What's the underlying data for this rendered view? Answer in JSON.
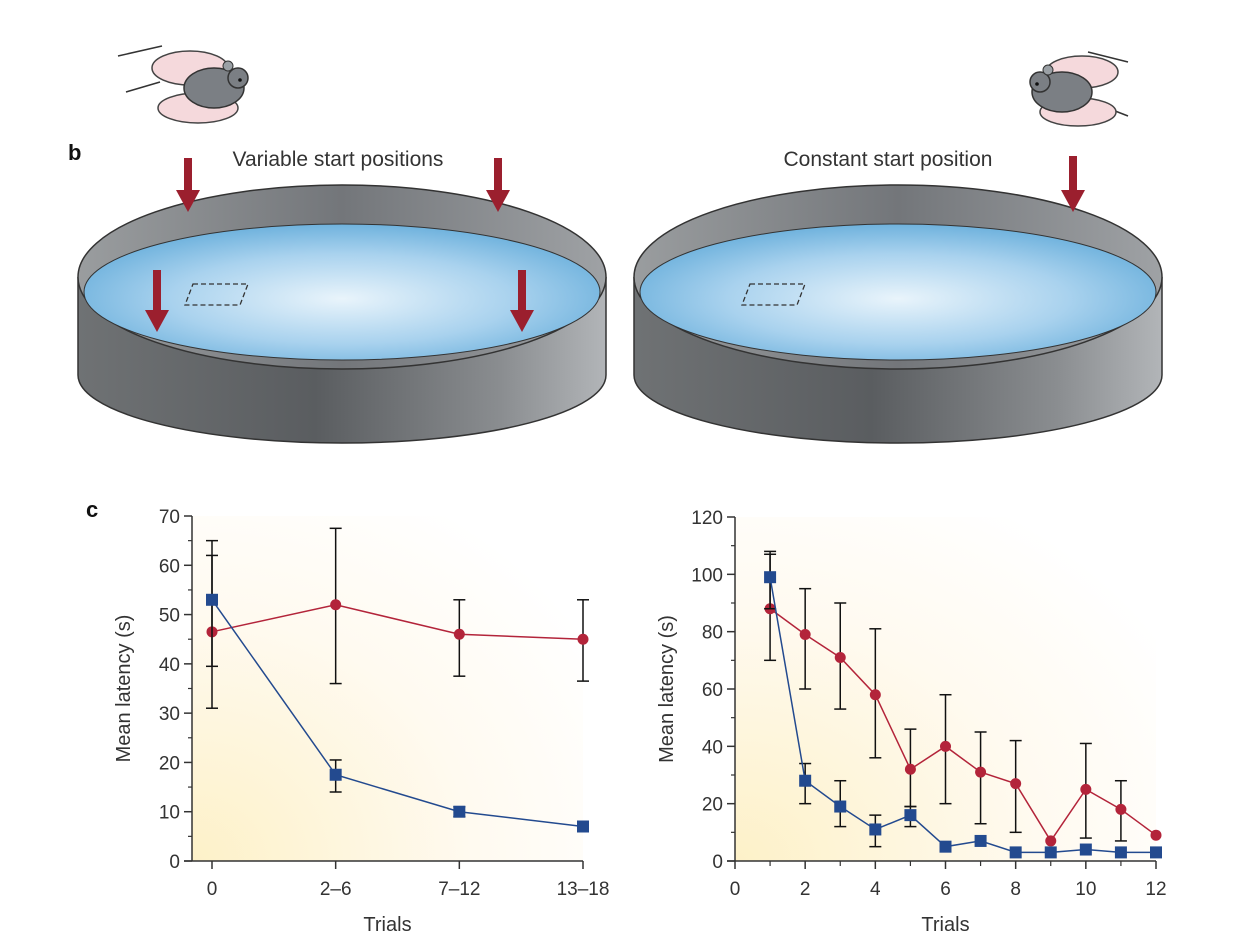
{
  "panel_b": {
    "letter": "b",
    "left_title": "Variable start positions",
    "right_title": "Constant start position"
  },
  "panel_c": {
    "letter": "c"
  },
  "colors": {
    "red_series": "#b3243a",
    "blue_series": "#234a8f",
    "arrow": "#9b1f2e",
    "water": "#6fb2dd"
  },
  "chart_data": [
    {
      "type": "line",
      "xlabel": "Trials",
      "ylabel": "Mean latency (s)",
      "categories": [
        "0",
        "2–6",
        "7–12",
        "13–18"
      ],
      "ylim": [
        0,
        70
      ],
      "yticks": [
        0,
        10,
        20,
        30,
        40,
        50,
        60,
        70
      ],
      "series": [
        {
          "color": "red",
          "marker": "circle",
          "values": [
            46.5,
            52,
            46,
            45
          ],
          "err_low": [
            31,
            36,
            37.5,
            36.5
          ],
          "err_high": [
            62,
            67.5,
            53,
            53
          ]
        },
        {
          "color": "blue",
          "marker": "square",
          "values": [
            53,
            17.5,
            10,
            7
          ],
          "err_low": [
            39.5,
            14,
            9,
            6
          ],
          "err_high": [
            65,
            20.5,
            11,
            8
          ]
        }
      ]
    },
    {
      "type": "line",
      "xlabel": "Trials",
      "ylabel": "Mean latency (s)",
      "x": [
        1,
        2,
        3,
        4,
        5,
        6,
        7,
        8,
        9,
        10,
        11,
        12
      ],
      "xlim": [
        0,
        12
      ],
      "xticks": [
        0,
        2,
        4,
        6,
        8,
        10,
        12
      ],
      "ylim": [
        0,
        120
      ],
      "yticks": [
        0,
        20,
        40,
        60,
        80,
        100,
        120
      ],
      "series": [
        {
          "color": "red",
          "marker": "circle",
          "values": [
            88,
            79,
            71,
            58,
            32,
            40,
            31,
            27,
            7,
            25,
            18,
            9
          ],
          "err_low": [
            70,
            60,
            53,
            36,
            19,
            20,
            13,
            10,
            7,
            8,
            7,
            9
          ],
          "err_high": [
            107,
            95,
            90,
            81,
            46,
            58,
            45,
            42,
            7,
            41,
            28,
            9
          ]
        },
        {
          "color": "blue",
          "marker": "square",
          "values": [
            99,
            28,
            19,
            11,
            16,
            5,
            7,
            3,
            3,
            4,
            3,
            3
          ],
          "err_low": [
            88,
            20,
            12,
            5,
            12,
            5,
            7,
            3,
            3,
            4,
            3,
            3
          ],
          "err_high": [
            108,
            34,
            28,
            16,
            19,
            5,
            7,
            3,
            3,
            4,
            3,
            3
          ]
        }
      ]
    }
  ]
}
